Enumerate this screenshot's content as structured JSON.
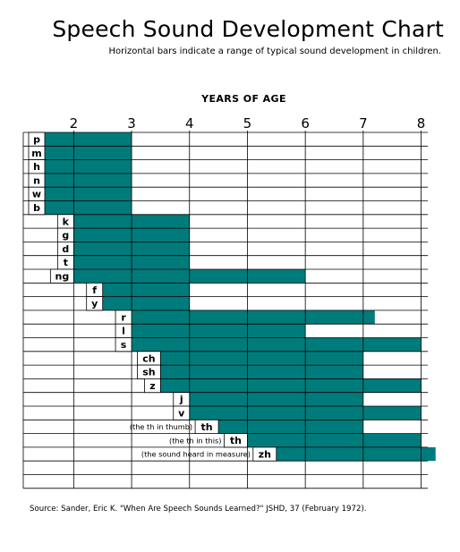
{
  "title": "Speech Sound Development Chart",
  "subtitle": "Horizontal bars indicate a range of typical sound development in children.",
  "source": "Source:  Sander, Eric K. \"When Are Speech Sounds Learned?\" JSHD, 37  (February 1972).",
  "colors": {
    "bar": "#007b7b",
    "grid": "#000000"
  },
  "chart_data": {
    "type": "bar",
    "orientation": "horizontal",
    "xlabel": "YEARS OF AGE",
    "xticks": [
      2,
      3,
      4,
      5,
      6,
      7,
      8
    ],
    "xlim": [
      1.5,
      8.25
    ],
    "grid": true,
    "sounds": [
      {
        "label": "p",
        "start": 1.5,
        "end": 3.0
      },
      {
        "label": "m",
        "start": 1.5,
        "end": 3.0
      },
      {
        "label": "h",
        "start": 1.5,
        "end": 3.0
      },
      {
        "label": "n",
        "start": 1.5,
        "end": 3.0
      },
      {
        "label": "w",
        "start": 1.5,
        "end": 3.0
      },
      {
        "label": "b",
        "start": 1.5,
        "end": 3.0
      },
      {
        "label": "k",
        "start": 2.0,
        "end": 4.0
      },
      {
        "label": "g",
        "start": 2.0,
        "end": 4.0
      },
      {
        "label": "d",
        "start": 2.0,
        "end": 4.0
      },
      {
        "label": "t",
        "start": 2.0,
        "end": 4.0
      },
      {
        "label": "ng",
        "start": 2.0,
        "end": 6.0
      },
      {
        "label": "f",
        "start": 2.5,
        "end": 4.0
      },
      {
        "label": "y",
        "start": 2.5,
        "end": 4.0
      },
      {
        "label": "r",
        "start": 3.0,
        "end": 7.2
      },
      {
        "label": "l",
        "start": 3.0,
        "end": 6.0
      },
      {
        "label": "s",
        "start": 3.0,
        "end": 8.0
      },
      {
        "label": "ch",
        "start": 3.5,
        "end": 7.0
      },
      {
        "label": "sh",
        "start": 3.5,
        "end": 7.0
      },
      {
        "label": "z",
        "start": 3.5,
        "end": 8.0
      },
      {
        "label": "j",
        "start": 4.0,
        "end": 7.0
      },
      {
        "label": "v",
        "start": 4.0,
        "end": 8.0
      },
      {
        "label": "th",
        "start": 4.5,
        "end": 7.0,
        "note": "(the th in thumb)"
      },
      {
        "label": "th",
        "start": 5.0,
        "end": 8.0,
        "note": "(the th in this)"
      },
      {
        "label": "zh",
        "start": 5.5,
        "end": 8.25,
        "note": "(the sound heard in measure)"
      }
    ]
  }
}
